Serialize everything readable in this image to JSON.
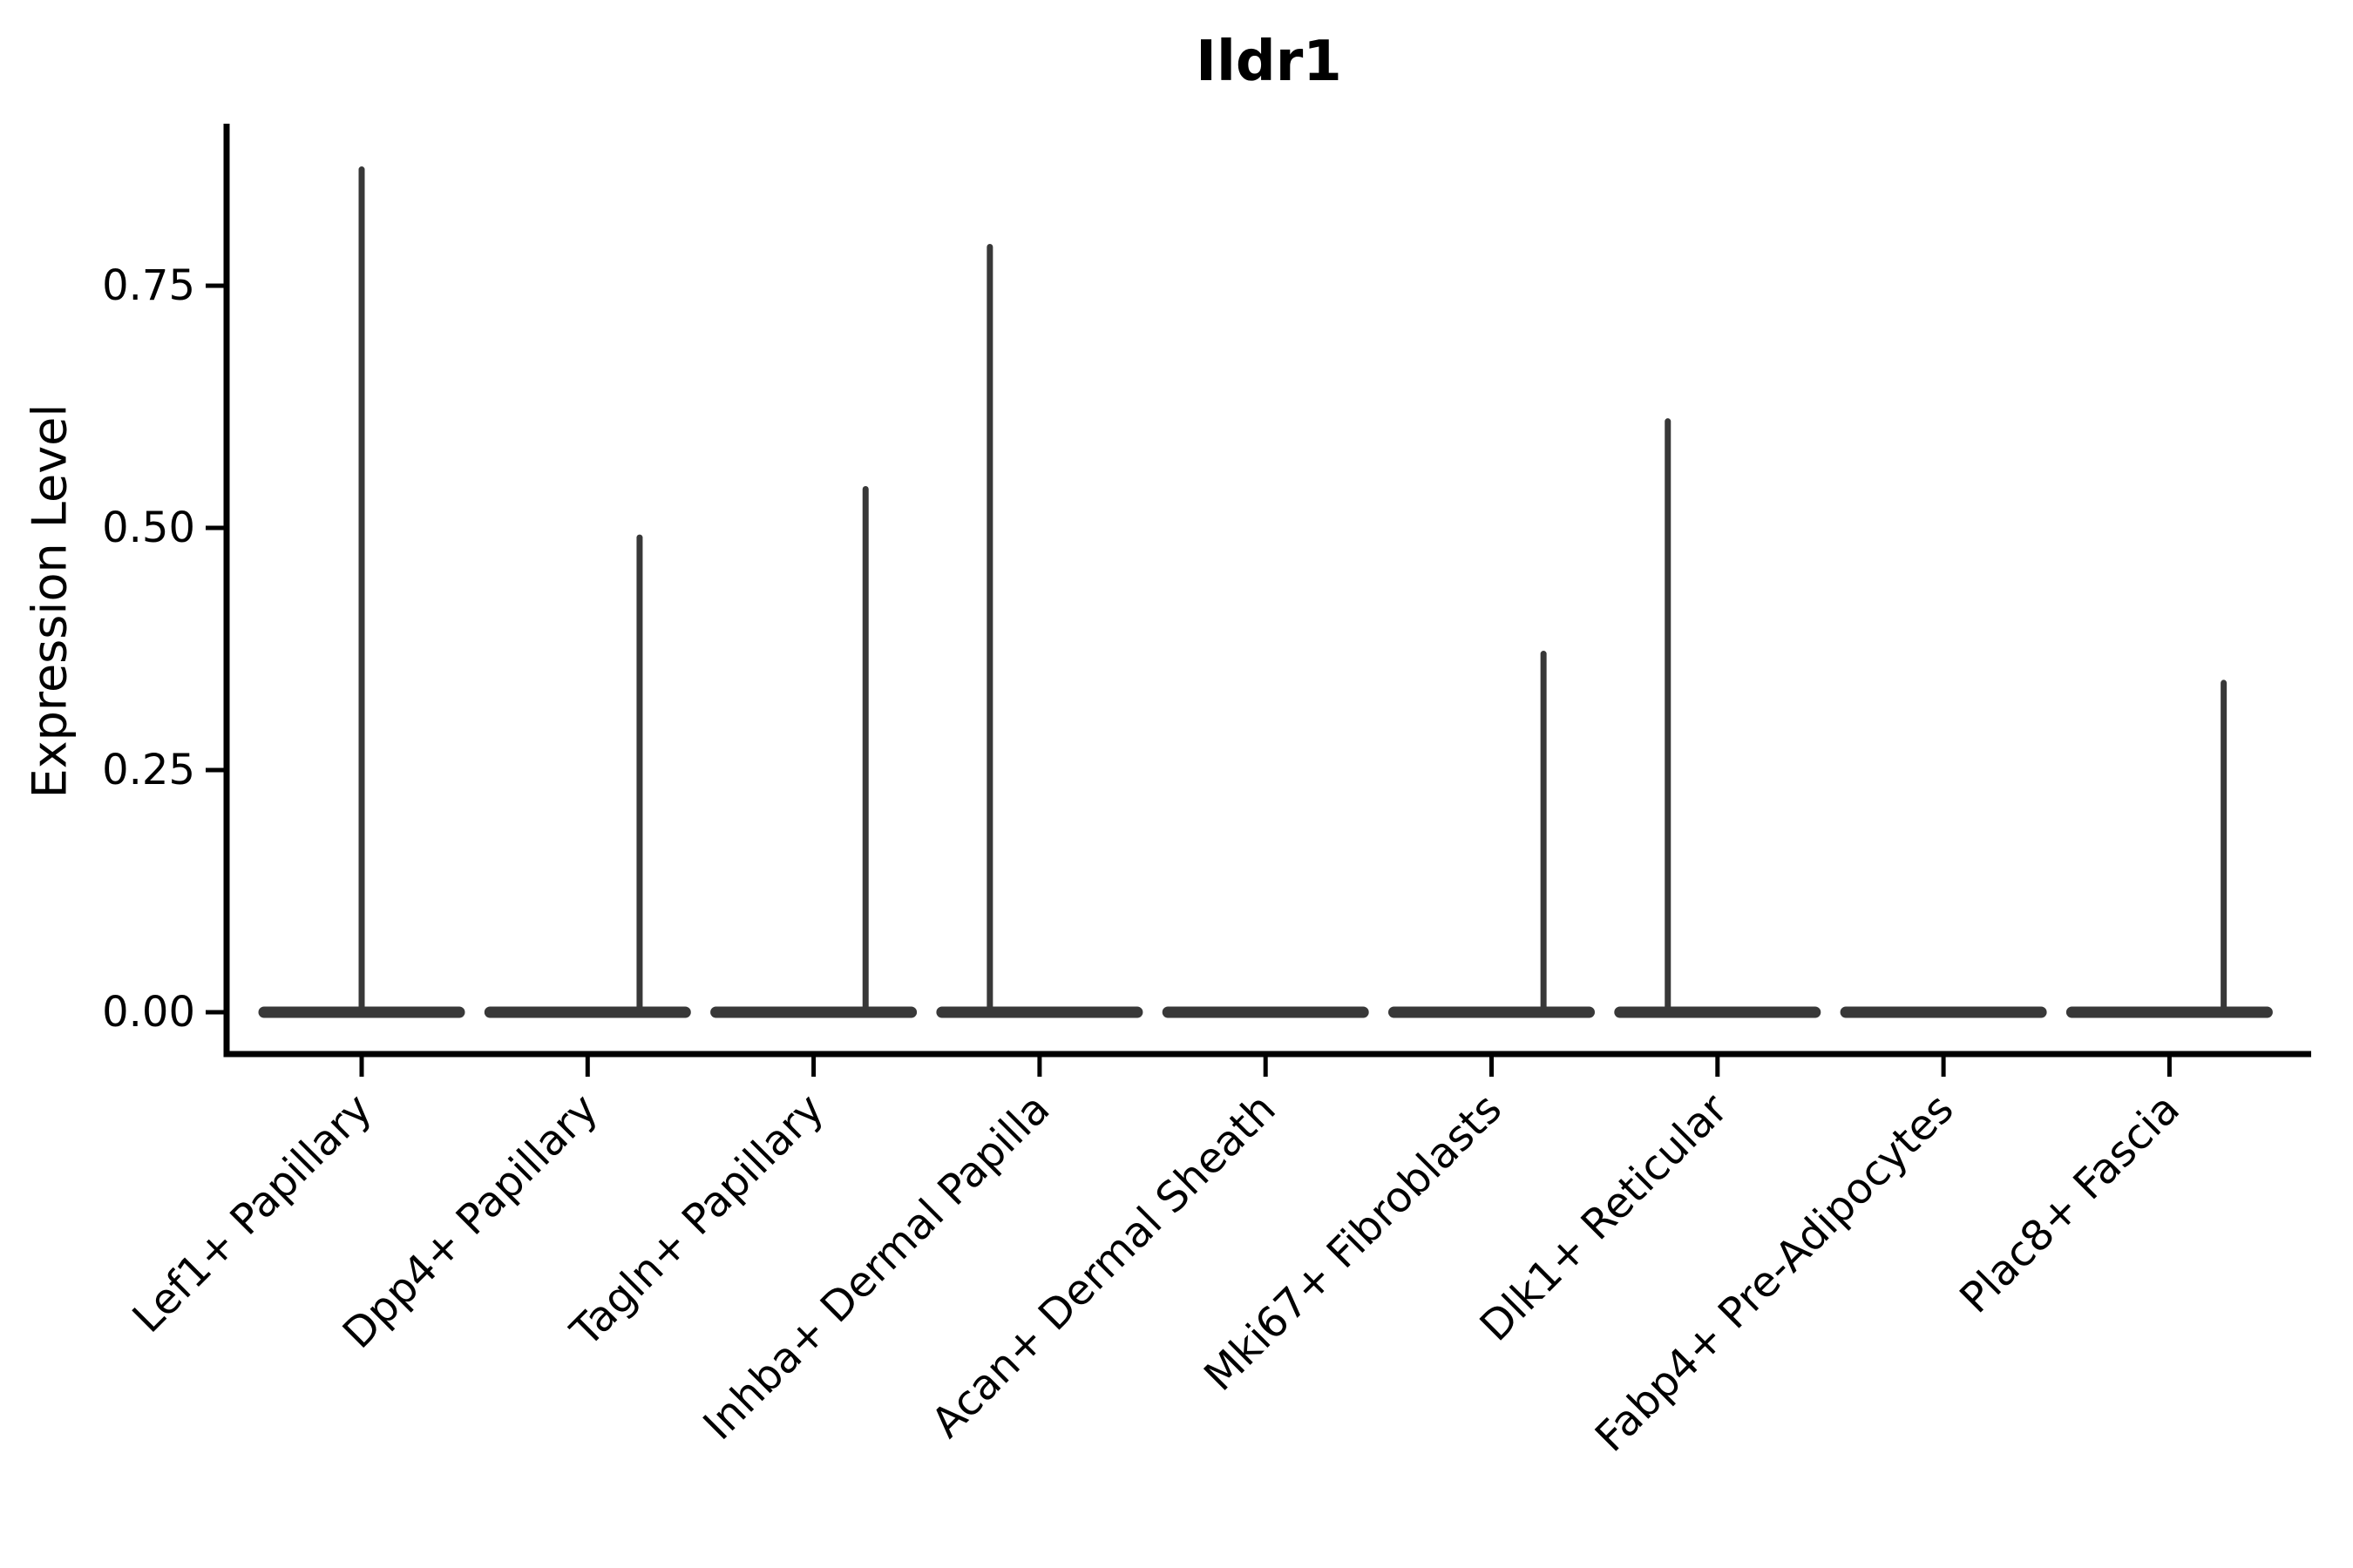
{
  "title": "Ildr1",
  "y_axis": {
    "label": "Expression Level"
  },
  "chart_data": {
    "type": "violin",
    "title": "Ildr1",
    "xlabel": "",
    "ylabel": "Expression Level",
    "categories": [
      "Lef1+ Papillary",
      "Dpp4+ Papillary",
      "Tagln+ Papillary",
      "Inhba+ Dermal Papilla",
      "Acan+ Dermal Sheath",
      "Mki67+ Fibroblasts",
      "Dlk1+ Reticular",
      "Fabp4+ Pre-Adipocytes",
      "Plac8+ Fascia"
    ],
    "violins": [
      {
        "category": "Lef1+ Papillary",
        "baseline": 0.0,
        "max_expression": 0.87,
        "spike_dx": 0.0
      },
      {
        "category": "Dpp4+ Papillary",
        "baseline": 0.0,
        "max_expression": 0.49,
        "spike_dx": 0.23
      },
      {
        "category": "Tagln+ Papillary",
        "baseline": 0.0,
        "max_expression": 0.54,
        "spike_dx": 0.23
      },
      {
        "category": "Inhba+ Dermal Papilla",
        "baseline": 0.0,
        "max_expression": 0.79,
        "spike_dx": -0.22
      },
      {
        "category": "Acan+ Dermal Sheath",
        "baseline": 0.0,
        "max_expression": 0.0,
        "spike_dx": null
      },
      {
        "category": "Mki67+ Fibroblasts",
        "baseline": 0.0,
        "max_expression": 0.37,
        "spike_dx": 0.23
      },
      {
        "category": "Dlk1+ Reticular",
        "baseline": 0.0,
        "max_expression": 0.61,
        "spike_dx": -0.22
      },
      {
        "category": "Fabp4+ Pre-Adipocytes",
        "baseline": 0.0,
        "max_expression": 0.0,
        "spike_dx": null
      },
      {
        "category": "Plac8+ Fascia",
        "baseline": 0.0,
        "max_expression": 0.34,
        "spike_dx": 0.24
      }
    ],
    "ytick_labels": [
      "0.00",
      "0.25",
      "0.50",
      "0.75"
    ],
    "ytick_values": [
      0.0,
      0.25,
      0.5,
      0.75
    ],
    "ylim": [
      0.0,
      0.92
    ],
    "grid": false,
    "legend": "none",
    "colors": {
      "violin_stroke": "#383838",
      "axis": "#000000",
      "text": "#000000",
      "background": "#ffffff"
    }
  }
}
